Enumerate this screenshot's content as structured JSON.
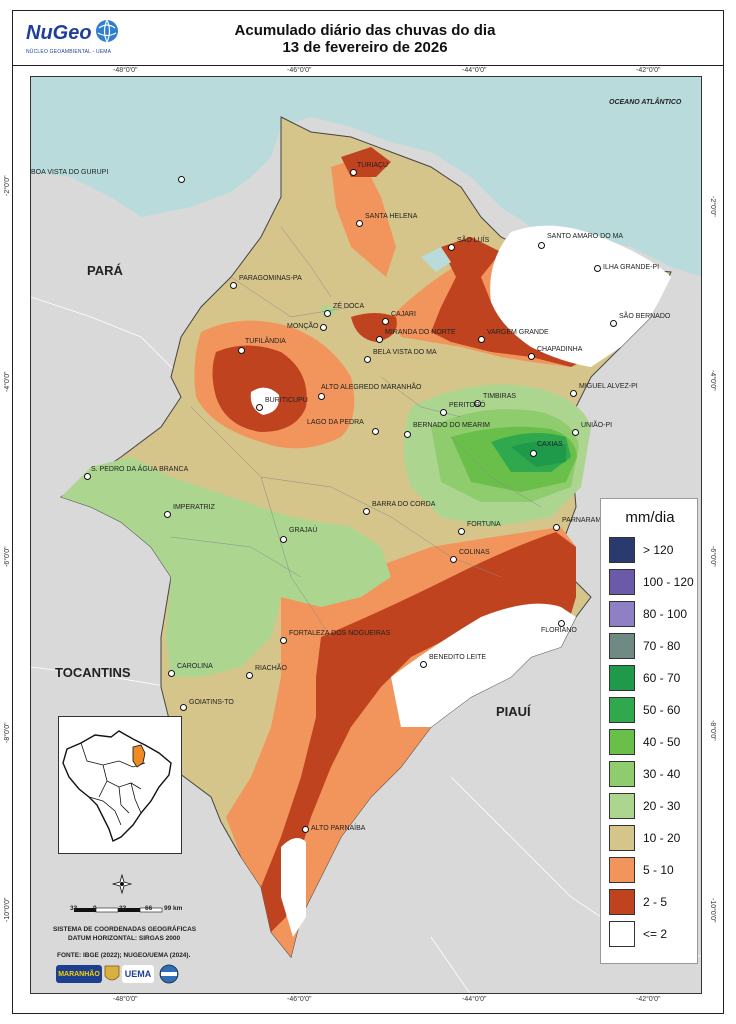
{
  "header": {
    "logo_text": "NuGeo",
    "logo_subtitle": "NÚCLEO GEOAMBIENTAL - UEMA",
    "title_line1": "Acumulado diário das chuvas do dia",
    "title_line2": "13 de fevereiro de 2026"
  },
  "coords": {
    "top": [
      "-48°0'0\"",
      "-46°0'0\"",
      "-44°0'0\"",
      "-42°0'0\""
    ],
    "bottom": [
      "-48°0'0\"",
      "-46°0'0\"",
      "-44°0'0\"",
      "-42°0'0\""
    ],
    "left": [
      "-2°0'0\"",
      "-4°0'0\"",
      "-6°0'0\"",
      "-8°0'0\"",
      "-10°0'0\""
    ],
    "right": [
      "-2°0'0\"",
      "-4°0'0\"",
      "-6°0'0\"",
      "-8°0'0\"",
      "-10°0'0\""
    ]
  },
  "regions": {
    "ocean": "OCEANO ATLÂNTICO",
    "para": "PARÁ",
    "tocantins": "TOCANTINS",
    "piaui": "PIAUÍ"
  },
  "cities": [
    "TURIAÇU",
    "BOA VISTA DO GURUPI",
    "SANTA HELENA",
    "SÃO LUÍS",
    "SANTO AMARO DO MA",
    "ILHA GRANDE-PI",
    "PARAGOMINAS-PA",
    "ZÉ DOCA",
    "CAJARI",
    "MONÇÃO",
    "MIRANDA DO NORTE",
    "VARGEM GRANDE",
    "SÃO BERNADO",
    "CHAPADINHA",
    "TUFILÂNDIA",
    "BELA VISTA DO MA",
    "ALTO ALEGREDO MARANHÃO",
    "TIMBIRAS",
    "MIGUEL ALVEZ-PI",
    "BURITICUPU",
    "PERITORÓ",
    "UNIÃO-PI",
    "LAGO DA PEDRA",
    "BERNADO DO MEARIM",
    "CAXIAS",
    "S. PEDRO DA ÁGUA BRANCA",
    "IMPERATRIZ",
    "BARRA DO CORDA",
    "FORTUNA",
    "PARNARAMA",
    "GRAJAÚ",
    "COLINAS",
    "FLORIANO",
    "FORTALEZA DOS NOGUEIRAS",
    "BENEDITO LEITE",
    "CAROLINA",
    "RIACHÃO",
    "GOIATINS-TO",
    "ALTO PARNAÍBA"
  ],
  "scale": {
    "ticks": [
      "33",
      "0",
      "33",
      "66",
      "99 km"
    ],
    "line1": "SISTEMA DE COORDENADAS GEOGRÁFICAS",
    "line2": "DATUM HORIZONTAL: SIRGAS 2000",
    "source": "FONTE: IBGE (2022); NUGEO/UEMA (2024)."
  },
  "legend": {
    "title": "mm/dia",
    "items": [
      {
        "label": "> 120",
        "color": "#2b3a6e"
      },
      {
        "label": "100 - 120",
        "color": "#6a5aa8"
      },
      {
        "label": "80 - 100",
        "color": "#8f7fc4"
      },
      {
        "label": "70 - 80",
        "color": "#6f8a83"
      },
      {
        "label": "60 - 70",
        "color": "#1f9a4a"
      },
      {
        "label": "50 - 60",
        "color": "#2fa84e"
      },
      {
        "label": "40 - 50",
        "color": "#6abf4b"
      },
      {
        "label": "30 - 40",
        "color": "#8fcc6e"
      },
      {
        "label": "20 - 30",
        "color": "#acd690"
      },
      {
        "label": "10 - 20",
        "color": "#d6c58a"
      },
      {
        "label": "5 - 10",
        "color": "#f2955c"
      },
      {
        "label": "2 - 5",
        "color": "#c0431f"
      },
      {
        "label": "<= 2",
        "color": "#ffffff"
      }
    ]
  },
  "partners": [
    "MARANHÃO",
    "UEMA"
  ]
}
